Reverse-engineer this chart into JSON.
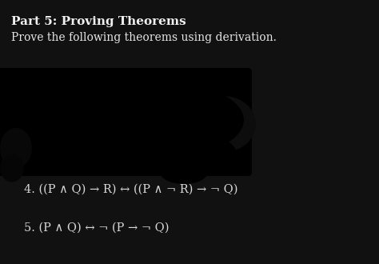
{
  "background_color": "#111111",
  "title_bold": "Part 5: Proving Theorems",
  "subtitle": "Prove the following theorems using derivation.",
  "title_color": "#f0f0f0",
  "subtitle_color": "#e8e8e8",
  "title_fontsize": 11,
  "subtitle_fontsize": 10,
  "formula4": "4. ((P ∧ Q) → R) ↔ ((P ∧ ¬ R) → ¬ Q)",
  "formula5": "5. (P ∧ Q) ↔ ¬ (P → ¬ Q)",
  "formula_color": "#d8d8d8",
  "formula_fontsize": 10.5,
  "blob_color": "#000000",
  "dark_bg": "#0a0a0a"
}
